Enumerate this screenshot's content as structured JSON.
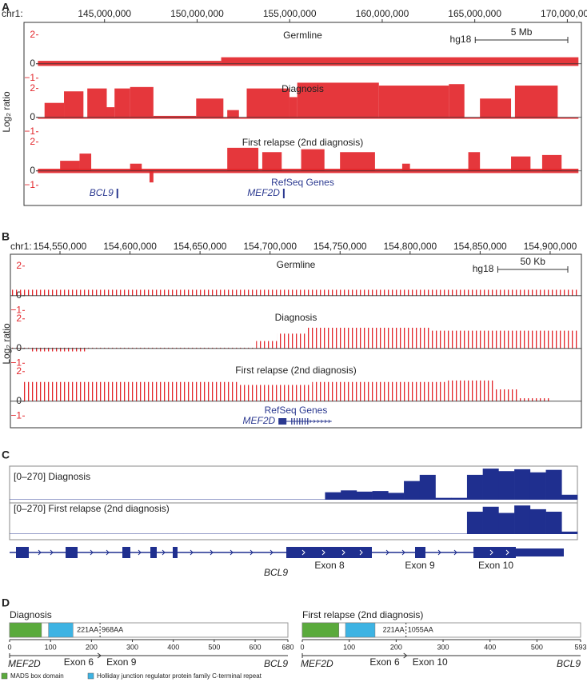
{
  "panels": [
    {
      "type": "copy_number",
      "letter": "A",
      "chrom": "chr1:",
      "xlim": [
        141340000,
        170760000
      ],
      "xticks": [
        {
          "value": 145000000,
          "label": "145,000,000"
        },
        {
          "value": 150000000,
          "label": "150,000,000"
        },
        {
          "value": 155000000,
          "label": "155,000,000"
        },
        {
          "value": 160000000,
          "label": "160,000,000"
        },
        {
          "value": 165000000,
          "label": "165,000,000"
        },
        {
          "value": 170000000,
          "label": "170,000,000"
        }
      ],
      "y_label": "Log₂ ratio",
      "ylim": [
        -1.4,
        2.7
      ],
      "yticks": [
        {
          "value": -1,
          "label": "−1"
        },
        0,
        2
      ],
      "build": "hg18",
      "scale_bar": {
        "value": 5000000,
        "label": "5 Mb"
      },
      "color": "#e3262b",
      "style": "fill",
      "tracks": [
        {
          "name": "Germline",
          "segments": [
            [
              141400000,
              151300000,
              0.2
            ],
            [
              151300000,
              170600000,
              0.45
            ],
            [
              141400000,
              170600000,
              -0.15
            ]
          ]
        },
        {
          "name": "Diagnosis",
          "segments": [
            [
              141760000,
              142810000,
              1.0
            ],
            [
              142810000,
              143860000,
              1.8
            ],
            [
              144070000,
              145120000,
              2.0
            ],
            [
              145120000,
              145540000,
              0.7
            ],
            [
              145540000,
              146380000,
              2.0
            ],
            [
              146380000,
              147640000,
              2.1
            ],
            [
              147640000,
              149950000,
              0.1
            ],
            [
              149950000,
              151420000,
              1.3
            ],
            [
              151630000,
              152260000,
              0.5
            ],
            [
              152680000,
              154990000,
              2.0
            ],
            [
              154990000,
              155410000,
              1.4
            ],
            [
              155410000,
              159820000,
              2.4
            ],
            [
              159820000,
              163600000,
              2.2
            ],
            [
              163600000,
              164440000,
              2.3
            ],
            [
              165280000,
              166960000,
              1.3
            ],
            [
              167170000,
              169480000,
              2.2
            ],
            [
              141400000,
              170600000,
              -0.1
            ]
          ]
        },
        {
          "name": "First relapse (2nd diagnosis)",
          "segments": [
            [
              141400000,
              170600000,
              0.15
            ],
            [
              141400000,
              170600000,
              -0.15
            ],
            [
              142600000,
              143650000,
              0.7
            ],
            [
              143650000,
              144280000,
              1.2
            ],
            [
              146380000,
              147010000,
              0.5
            ],
            [
              147430000,
              147640000,
              -0.8
            ],
            [
              151630000,
              153310000,
              1.6
            ],
            [
              153520000,
              154570000,
              1.3
            ],
            [
              155620000,
              156880000,
              1.5
            ],
            [
              157720000,
              159610000,
              1.3
            ],
            [
              161080000,
              161500000,
              0.5
            ],
            [
              164650000,
              165280000,
              1.3
            ],
            [
              166960000,
              168010000,
              1.0
            ],
            [
              168640000,
              169690000,
              1.1
            ]
          ]
        }
      ],
      "genes_label": "RefSeq Genes",
      "genes": [
        {
          "name": "BCL9",
          "start": 145650000,
          "end": 145720000
        },
        {
          "name": "MEF2D",
          "start": 154640000,
          "end": 154700000
        }
      ]
    },
    {
      "type": "copy_number",
      "letter": "B",
      "chrom": "chr1:",
      "xlim": [
        154514600,
        154922300
      ],
      "xticks": [
        {
          "value": 154550000,
          "label": "154,550,000"
        },
        {
          "value": 154600000,
          "label": "154,600,000"
        },
        {
          "value": 154650000,
          "label": "154,650,000"
        },
        {
          "value": 154700000,
          "label": "154,700,000"
        },
        {
          "value": 154750000,
          "label": "154,750,000"
        },
        {
          "value": 154800000,
          "label": "154,800,000"
        },
        {
          "value": 154850000,
          "label": "154,850,000"
        },
        {
          "value": 154900000,
          "label": "154,900,000"
        }
      ],
      "y_label": "Log₂ ratio",
      "ylim": [
        -1.4,
        2.8
      ],
      "yticks": [
        {
          "value": -1,
          "label": "−1"
        },
        0,
        2
      ],
      "build": "hg18",
      "scale_bar": {
        "value": 50000,
        "label": "50 Kb"
      },
      "color": "#e3262b",
      "style": "probes",
      "tracks": [
        {
          "name": "Germline",
          "segments": [
            [
              154515000,
              154921000,
              0.4
            ]
          ]
        },
        {
          "name": "Diagnosis",
          "segments": [
            [
              154530000,
              154570000,
              -0.2
            ],
            [
              154515000,
              154690000,
              0.05
            ],
            [
              154690000,
              154705000,
              0.5
            ],
            [
              154705000,
              154725000,
              1.0
            ],
            [
              154725000,
              154815000,
              1.4
            ],
            [
              154815000,
              154921000,
              1.2
            ]
          ]
        },
        {
          "name": "First relapse (2nd diagnosis)",
          "segments": [
            [
              154524000,
              154678000,
              1.3
            ],
            [
              154678000,
              154730000,
              1.1
            ],
            [
              154730000,
              154827000,
              1.3
            ],
            [
              154827000,
              154861000,
              1.4
            ],
            [
              154861000,
              154878000,
              0.8
            ],
            [
              154878000,
              154901000,
              0.2
            ]
          ]
        }
      ],
      "genes_label": "RefSeq Genes",
      "genes": [
        {
          "name": "MEF2D",
          "start": 154706000,
          "end": 154744000
        }
      ]
    },
    {
      "type": "coverage",
      "letter": "C",
      "color": "#1f2f8f",
      "tracks": [
        {
          "label": "[0–270] Diagnosis",
          "ylim": [
            0,
            270
          ],
          "values": [
            3,
            3,
            3,
            3,
            3,
            3,
            3,
            3,
            3,
            3,
            3,
            3,
            3,
            3,
            3,
            3,
            3,
            3,
            3,
            3,
            60,
            75,
            65,
            70,
            55,
            150,
            200,
            15,
            15,
            200,
            250,
            230,
            245,
            220,
            240,
            40
          ]
        },
        {
          "label": "[0–270] First relapse (2nd diagnosis)",
          "ylim": [
            0,
            270
          ],
          "values": [
            3,
            3,
            3,
            3,
            3,
            3,
            3,
            3,
            3,
            3,
            3,
            3,
            3,
            3,
            3,
            3,
            3,
            3,
            3,
            3,
            3,
            3,
            3,
            3,
            3,
            3,
            3,
            3,
            3,
            180,
            220,
            170,
            230,
            200,
            180,
            20
          ]
        }
      ],
      "gene": "BCL9",
      "exon_labels": [
        "Exon 8",
        "Exon 9",
        "Exon 10"
      ]
    },
    {
      "type": "protein",
      "letter": "D",
      "proteins": [
        {
          "title": "Diagnosis",
          "xlim": [
            0,
            680
          ],
          "xticks": [
            0,
            100,
            200,
            300,
            400,
            500,
            600,
            680
          ],
          "domains": [
            {
              "start": 0,
              "end": 78,
              "color": "#5aaa3c"
            },
            {
              "start": 95,
              "end": 155,
              "color": "#3db3e3"
            }
          ],
          "junction": {
            "value": 221,
            "label": "221AA"
          },
          "partner_position": "968AA",
          "left_gene": "MEF2D",
          "left_exon": "Exon 6",
          "right_exon": "Exon 9",
          "right_gene": "BCL9"
        },
        {
          "title": "First relapse (2nd diagnosis)",
          "xlim": [
            0,
            593
          ],
          "xticks": [
            0,
            100,
            200,
            300,
            400,
            500,
            593
          ],
          "domains": [
            {
              "start": 0,
              "end": 78,
              "color": "#5aaa3c"
            },
            {
              "start": 92,
              "end": 155,
              "color": "#3db3e3"
            }
          ],
          "junction": {
            "value": 221,
            "label": "221AA"
          },
          "partner_position": "1055AA",
          "left_gene": "MEF2D",
          "left_exon": "Exon 6",
          "right_exon": "Exon 10",
          "right_gene": "BCL9"
        }
      ],
      "legend": [
        {
          "label": "MADS box domain",
          "color": "#5aaa3c"
        },
        {
          "label": "Holliday junction regulator protein family C-terminal repeat",
          "color": "#3db3e3"
        }
      ]
    }
  ]
}
